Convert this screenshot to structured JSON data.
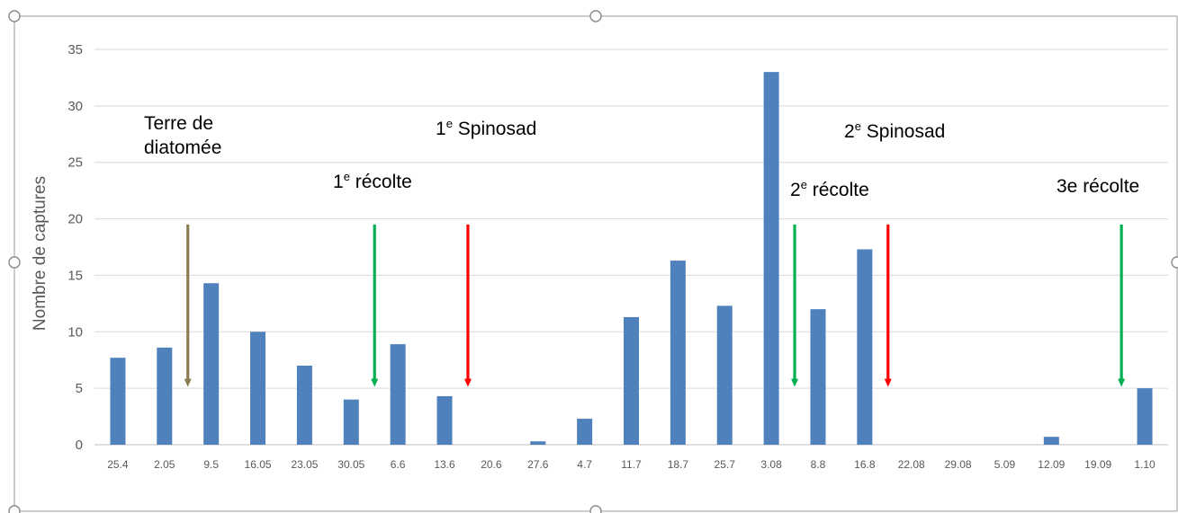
{
  "chart_data": {
    "type": "bar",
    "title": "",
    "xlabel": "",
    "ylabel": "Nombre de captures",
    "ylim": [
      0,
      35
    ],
    "yticks": [
      0,
      5,
      10,
      15,
      20,
      25,
      30,
      35
    ],
    "grid": true,
    "legend": "none",
    "categories": [
      "25.4",
      "2.05",
      "9.5",
      "16.05",
      "23.05",
      "30.05",
      "6.6",
      "13.6",
      "20.6",
      "27.6",
      "4.7",
      "11.7",
      "18.7",
      "25.7",
      "3.08",
      "8.8",
      "16.8",
      "22.08",
      "29.08",
      "5.09",
      "12.09",
      "19.09",
      "1.10"
    ],
    "values": [
      7.7,
      8.6,
      14.3,
      10.0,
      7.0,
      4.0,
      8.9,
      4.3,
      0,
      0.3,
      2.3,
      11.3,
      16.3,
      12.3,
      33.0,
      12.0,
      17.3,
      0,
      0,
      0,
      0.7,
      0,
      5.0
    ],
    "bar_color": "#4f81bd",
    "annotations": [
      {
        "id": "terre",
        "lines": [
          "Terre de",
          "diatomée"
        ]
      },
      {
        "id": "spin1",
        "base": "1",
        "sup": "e",
        "rest": " Spinosad"
      },
      {
        "id": "rec1",
        "base": "1",
        "sup": "e",
        "rest": " récolte"
      },
      {
        "id": "spin2",
        "base": "2",
        "sup": "e",
        "rest": " Spinosad"
      },
      {
        "id": "rec2",
        "base": "2",
        "sup": "e",
        "rest": " récolte"
      },
      {
        "id": "rec3",
        "base": "3e récolte",
        "sup": "",
        "rest": ""
      }
    ],
    "arrows": [
      {
        "name": "arrow-diatomee",
        "color": "#8b7d4f",
        "after_category": "2.05"
      },
      {
        "name": "arrow-recolte-1",
        "color": "#00b050",
        "after_category": "30.05"
      },
      {
        "name": "arrow-spinosad-1",
        "color": "#ff0000",
        "after_category": "13.6"
      },
      {
        "name": "arrow-recolte-2",
        "color": "#00b050",
        "after_category": "3.08"
      },
      {
        "name": "arrow-spinosad-2",
        "color": "#ff0000",
        "after_category": "16.8"
      },
      {
        "name": "arrow-recolte-3",
        "color": "#00b050",
        "after_category": "19.09"
      }
    ]
  }
}
